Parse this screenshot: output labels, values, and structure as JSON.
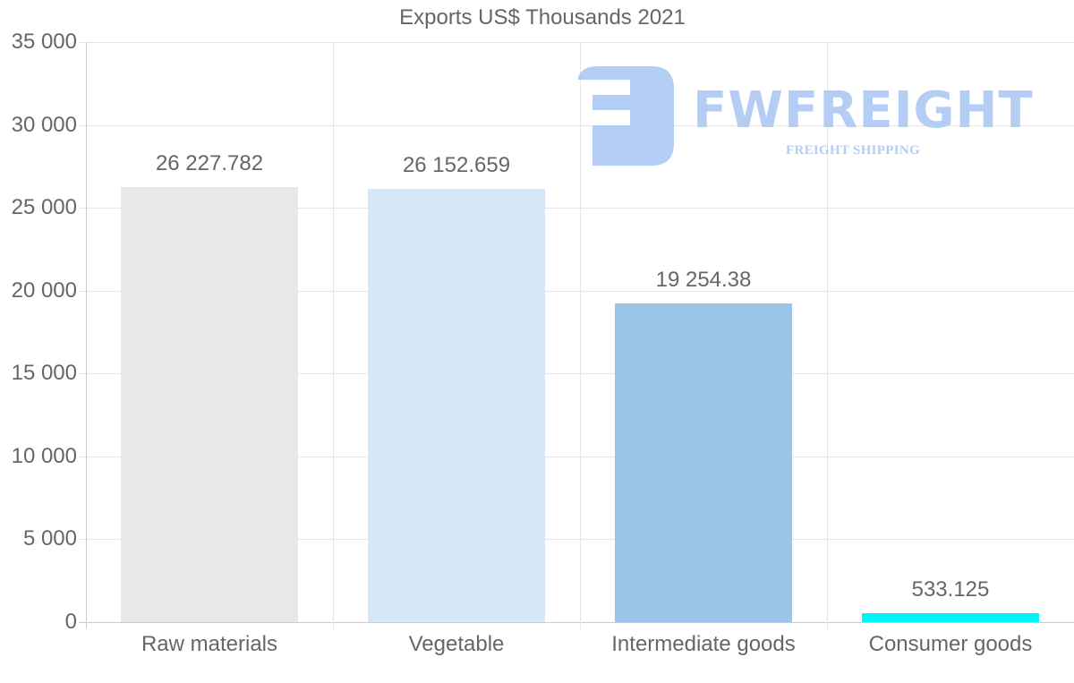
{
  "chart_data": {
    "type": "bar",
    "title": "Exports US$ Thousands 2021",
    "xlabel": "",
    "ylabel": "",
    "categories": [
      "Raw materials",
      "Vegetable",
      "Intermediate goods",
      "Consumer goods"
    ],
    "values": [
      26227.782,
      26152.659,
      19254.38,
      533.125
    ],
    "value_labels": [
      "26 227.782",
      "26 152.659",
      "19 254.38",
      "533.125"
    ],
    "colors": [
      "#e8e8e8",
      "#d6e7f8",
      "#9bc4e7",
      "#00f6f6"
    ],
    "ylim": [
      0,
      35000
    ],
    "yticks": [
      0,
      5000,
      10000,
      15000,
      20000,
      25000,
      30000,
      35000
    ],
    "ytick_labels": [
      "0",
      "5 000",
      "10 000",
      "15 000",
      "20 000",
      "25 000",
      "30 000",
      "35 000"
    ],
    "grid": true,
    "legend": null
  },
  "watermark": {
    "brand": "FWFREIGHT",
    "tagline": "FREIGHT SHIPPING",
    "color": "#b1cbf4"
  }
}
